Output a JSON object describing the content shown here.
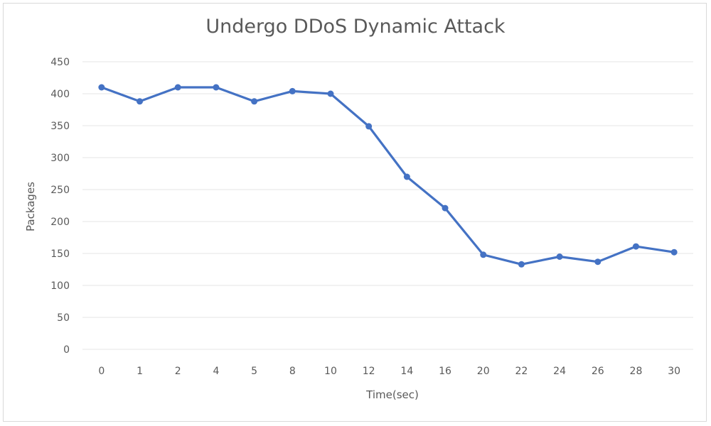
{
  "chart_data": {
    "type": "line",
    "title": "Undergo DDoS Dynamic Attack",
    "xlabel": "Time(sec)",
    "ylabel": "Packages",
    "categories": [
      "0",
      "1",
      "2",
      "4",
      "5",
      "8",
      "10",
      "12",
      "14",
      "16",
      "20",
      "22",
      "24",
      "26",
      "28",
      "30"
    ],
    "series": [
      {
        "name": "",
        "values": [
          410,
          388,
          410,
          410,
          388,
          404,
          400,
          349,
          270,
          221,
          148,
          133,
          145,
          137,
          161,
          152
        ]
      }
    ],
    "ylim": [
      0,
      450
    ],
    "yticks": [
      0,
      50,
      100,
      150,
      200,
      250,
      300,
      350,
      400,
      450
    ],
    "grid": true,
    "legend": "none",
    "colors": {
      "line": "#4472c4",
      "grid": "#e6e6e6",
      "text": "#595959"
    }
  }
}
